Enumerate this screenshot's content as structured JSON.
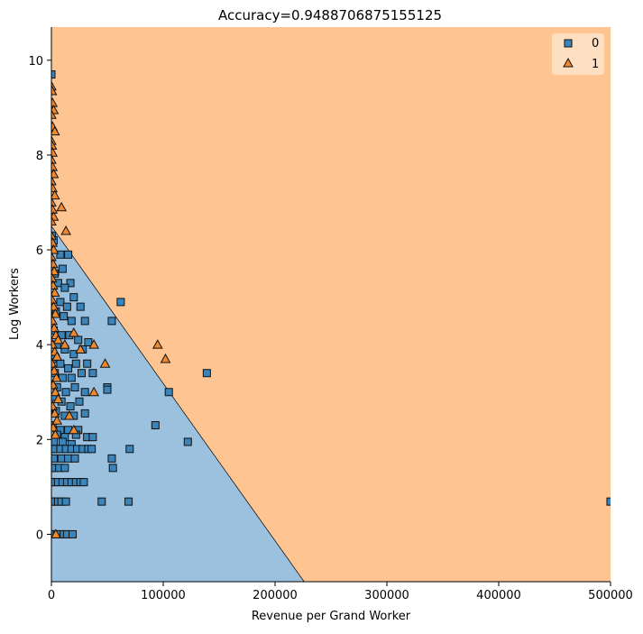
{
  "chart_data": {
    "type": "scatter",
    "title": "Accuracy=0.9488706875155125",
    "xlabel": "Revenue per Grand Worker",
    "ylabel": "Log Workers",
    "xlim": [
      0,
      500000
    ],
    "ylim": [
      -1.0,
      10.7
    ],
    "xticks": [
      0,
      100000,
      200000,
      300000,
      400000,
      500000
    ],
    "xtick_labels": [
      "0",
      "100000",
      "200000",
      "300000",
      "400000",
      "500000"
    ],
    "yticks": [
      0,
      2,
      4,
      6,
      8,
      10
    ],
    "ytick_labels": [
      "0",
      "2",
      "4",
      "6",
      "8",
      "10"
    ],
    "grid": false,
    "legend_position": "top-right",
    "decision_boundary": {
      "points": [
        [
          0,
          6.5
        ],
        [
          226000,
          -1.0
        ]
      ],
      "region_below_class": "0",
      "region_above_class": "1",
      "region_colors": {
        "0": "#9bc1de",
        "1": "#fec592"
      }
    },
    "series": [
      {
        "name": "0",
        "marker": "square",
        "color": "#3a84ba",
        "points": [
          [
            0,
            9.7
          ],
          [
            500,
            6.3
          ],
          [
            2000,
            6.2
          ],
          [
            8000,
            5.9
          ],
          [
            15000,
            5.9
          ],
          [
            10000,
            5.6
          ],
          [
            17000,
            5.3
          ],
          [
            3000,
            5.5
          ],
          [
            6000,
            5.3
          ],
          [
            12000,
            5.2
          ],
          [
            20000,
            5.0
          ],
          [
            8000,
            4.9
          ],
          [
            14000,
            4.8
          ],
          [
            26000,
            4.8
          ],
          [
            62000,
            4.9
          ],
          [
            4000,
            4.7
          ],
          [
            11000,
            4.6
          ],
          [
            18000,
            4.5
          ],
          [
            30000,
            4.5
          ],
          [
            54000,
            4.5
          ],
          [
            2000,
            4.3
          ],
          [
            9000,
            4.2
          ],
          [
            16000,
            4.2
          ],
          [
            24000,
            4.1
          ],
          [
            33000,
            4.05
          ],
          [
            5000,
            4.0
          ],
          [
            12000,
            3.9
          ],
          [
            20000,
            3.8
          ],
          [
            28000,
            3.9
          ],
          [
            1000,
            3.7
          ],
          [
            8000,
            3.6
          ],
          [
            15000,
            3.5
          ],
          [
            22000,
            3.6
          ],
          [
            32000,
            3.6
          ],
          [
            3000,
            3.4
          ],
          [
            10000,
            3.3
          ],
          [
            18000,
            3.3
          ],
          [
            27000,
            3.4
          ],
          [
            37000,
            3.4
          ],
          [
            139000,
            3.4
          ],
          [
            5000,
            3.1
          ],
          [
            13000,
            3.0
          ],
          [
            21000,
            3.1
          ],
          [
            30000,
            3.0
          ],
          [
            50000,
            3.1
          ],
          [
            2000,
            2.9
          ],
          [
            9000,
            2.8
          ],
          [
            17000,
            2.7
          ],
          [
            25000,
            2.8
          ],
          [
            50000,
            3.05
          ],
          [
            105000,
            3.0
          ],
          [
            4000,
            2.6
          ],
          [
            12000,
            2.5
          ],
          [
            20000,
            2.5
          ],
          [
            30000,
            2.55
          ],
          [
            1000,
            2.3
          ],
          [
            8000,
            2.2
          ],
          [
            15000,
            2.2
          ],
          [
            24000,
            2.2
          ],
          [
            93000,
            2.3
          ],
          [
            5000,
            2.1
          ],
          [
            12000,
            2.05
          ],
          [
            22000,
            2.1
          ],
          [
            32000,
            2.05
          ],
          [
            37000,
            2.05
          ],
          [
            2000,
            1.95
          ],
          [
            10000,
            1.95
          ],
          [
            18000,
            1.9
          ],
          [
            122000,
            1.95
          ],
          [
            0,
            1.8
          ],
          [
            3000,
            1.8
          ],
          [
            8000,
            1.8
          ],
          [
            13000,
            1.8
          ],
          [
            18000,
            1.8
          ],
          [
            23000,
            1.8
          ],
          [
            28000,
            1.8
          ],
          [
            33000,
            1.8
          ],
          [
            36000,
            1.8
          ],
          [
            70000,
            1.8
          ],
          [
            2000,
            1.6
          ],
          [
            9000,
            1.6
          ],
          [
            15000,
            1.6
          ],
          [
            21000,
            1.6
          ],
          [
            54000,
            1.6
          ],
          [
            0,
            1.4
          ],
          [
            3000,
            1.4
          ],
          [
            7000,
            1.4
          ],
          [
            12000,
            1.4
          ],
          [
            55000,
            1.4
          ],
          [
            0,
            1.1
          ],
          [
            3000,
            1.1
          ],
          [
            6000,
            1.1
          ],
          [
            10000,
            1.1
          ],
          [
            14000,
            1.1
          ],
          [
            18000,
            1.1
          ],
          [
            22000,
            1.1
          ],
          [
            26000,
            1.1
          ],
          [
            29000,
            1.1
          ],
          [
            0,
            0.69
          ],
          [
            3000,
            0.69
          ],
          [
            6000,
            0.69
          ],
          [
            9000,
            0.69
          ],
          [
            13000,
            0.69
          ],
          [
            45000,
            0.69
          ],
          [
            69000,
            0.69
          ],
          [
            500000,
            0.69
          ],
          [
            0,
            0.0
          ],
          [
            2000,
            0.0
          ],
          [
            5000,
            0.0
          ],
          [
            8000,
            0.0
          ],
          [
            11000,
            0.0
          ],
          [
            14000,
            0.0
          ],
          [
            19000,
            0.0
          ]
        ]
      },
      {
        "name": "1",
        "marker": "triangle",
        "color": "#f0882e",
        "points": [
          [
            0,
            9.45
          ],
          [
            500,
            9.35
          ],
          [
            1000,
            9.1
          ],
          [
            2000,
            8.95
          ],
          [
            0,
            8.85
          ],
          [
            1000,
            8.6
          ],
          [
            3000,
            8.5
          ],
          [
            0,
            8.3
          ],
          [
            500,
            8.2
          ],
          [
            1000,
            8.05
          ],
          [
            0,
            7.9
          ],
          [
            1000,
            7.75
          ],
          [
            2000,
            7.6
          ],
          [
            0,
            7.45
          ],
          [
            1000,
            7.3
          ],
          [
            3000,
            7.15
          ],
          [
            0,
            7.0
          ],
          [
            1000,
            6.85
          ],
          [
            2000,
            6.7
          ],
          [
            0,
            6.6
          ],
          [
            9000,
            6.9
          ],
          [
            13000,
            6.4
          ],
          [
            0,
            6.3
          ],
          [
            1000,
            6.15
          ],
          [
            2000,
            6.0
          ],
          [
            0,
            5.85
          ],
          [
            1500,
            5.7
          ],
          [
            2500,
            5.55
          ],
          [
            500,
            5.4
          ],
          [
            1500,
            5.25
          ],
          [
            3000,
            5.1
          ],
          [
            500,
            4.95
          ],
          [
            2000,
            4.8
          ],
          [
            3500,
            4.65
          ],
          [
            1000,
            4.5
          ],
          [
            2500,
            4.35
          ],
          [
            4000,
            4.2
          ],
          [
            6000,
            4.1
          ],
          [
            1000,
            4.0
          ],
          [
            3000,
            3.85
          ],
          [
            5000,
            3.75
          ],
          [
            500,
            3.6
          ],
          [
            2500,
            3.45
          ],
          [
            4500,
            3.3
          ],
          [
            1500,
            3.15
          ],
          [
            3500,
            3.0
          ],
          [
            6000,
            2.85
          ],
          [
            1000,
            2.7
          ],
          [
            3000,
            2.55
          ],
          [
            5000,
            2.4
          ],
          [
            1500,
            2.25
          ],
          [
            3500,
            2.1
          ],
          [
            12000,
            4.0
          ],
          [
            20000,
            4.25
          ],
          [
            26000,
            3.9
          ],
          [
            38000,
            4.0
          ],
          [
            48000,
            3.6
          ],
          [
            38000,
            3.0
          ],
          [
            16000,
            2.5
          ],
          [
            20000,
            2.2
          ],
          [
            95000,
            4.0
          ],
          [
            102000,
            3.7
          ],
          [
            4000,
            0.0
          ]
        ]
      }
    ]
  }
}
